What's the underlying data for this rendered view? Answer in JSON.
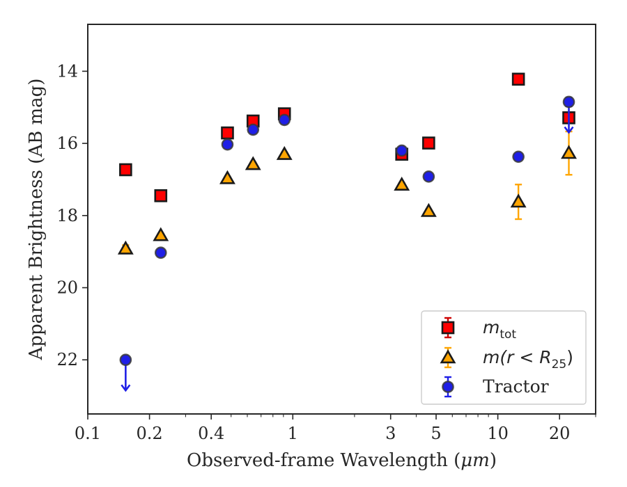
{
  "chart_data": {
    "type": "scatter",
    "xlabel_prefix": "Observed-frame Wavelength (",
    "xlabel_unit": "μm",
    "xlabel_suffix": ")",
    "ylabel": "Apparent Brightness (AB mag)",
    "xscale": "log",
    "xlim": [
      0.1,
      30
    ],
    "ylim": [
      23.5,
      12.7
    ],
    "y_inverted": true,
    "grid": false,
    "legend_position": "bottom-right",
    "x_ticks": [
      {
        "value": 0.1,
        "label": "0.1"
      },
      {
        "value": 0.2,
        "label": "0.2"
      },
      {
        "value": 0.4,
        "label": "0.4"
      },
      {
        "value": 1,
        "label": "1"
      },
      {
        "value": 3,
        "label": "3"
      },
      {
        "value": 5,
        "label": "5"
      },
      {
        "value": 10,
        "label": "10"
      },
      {
        "value": 20,
        "label": "20"
      }
    ],
    "y_ticks": [
      {
        "value": 14,
        "label": "14"
      },
      {
        "value": 16,
        "label": "16"
      },
      {
        "value": 18,
        "label": "18"
      },
      {
        "value": 20,
        "label": "20"
      },
      {
        "value": 22,
        "label": "22"
      }
    ],
    "series": [
      {
        "key": "mtot",
        "legend_main": "m",
        "legend_sub": "tot",
        "legend_rest": "",
        "marker": "square",
        "color": "#ff0000",
        "edge": "#1a1a1a",
        "err_color": "#cc0000",
        "points": [
          {
            "x": 0.153,
            "y": 16.73,
            "err": 0.05
          },
          {
            "x": 0.227,
            "y": 17.45,
            "err": 0.05
          },
          {
            "x": 0.48,
            "y": 15.71,
            "err": 0.05
          },
          {
            "x": 0.64,
            "y": 15.38,
            "err": 0.05
          },
          {
            "x": 0.91,
            "y": 15.18,
            "err": 0.07
          },
          {
            "x": 3.4,
            "y": 16.3,
            "err": 0.12
          },
          {
            "x": 4.6,
            "y": 15.99,
            "err": 0.05
          },
          {
            "x": 12.6,
            "y": 14.22,
            "err": 0.05
          },
          {
            "x": 22.2,
            "y": 15.29,
            "err": 0.05
          }
        ]
      },
      {
        "key": "mr25",
        "legend_main": "m",
        "legend_sub": "25",
        "legend_rest": "(r < R",
        "legend_close": ")",
        "marker": "triangle",
        "color": "#ffa500",
        "edge": "#1a1a1a",
        "err_color": "#ffa500",
        "points": [
          {
            "x": 0.153,
            "y": 18.92,
            "err": 0.1
          },
          {
            "x": 0.227,
            "y": 18.55,
            "err": 0.05
          },
          {
            "x": 0.48,
            "y": 16.97,
            "err": 0.05
          },
          {
            "x": 0.64,
            "y": 16.58,
            "err": 0.05
          },
          {
            "x": 0.91,
            "y": 16.3,
            "err": 0.05
          },
          {
            "x": 3.4,
            "y": 17.15,
            "err": 0.05
          },
          {
            "x": 4.6,
            "y": 17.88,
            "err": 0.05
          },
          {
            "x": 12.6,
            "y": 17.62,
            "err": 0.48
          },
          {
            "x": 22.2,
            "y": 16.27,
            "err": 0.6
          }
        ]
      },
      {
        "key": "tractor",
        "legend_main": "Tractor",
        "marker": "circle",
        "color": "#1f1fe6",
        "edge": "#3a3a3a",
        "err_color": "#1f1fe6",
        "points": [
          {
            "x": 0.153,
            "y": 22.0,
            "err": 0.05,
            "upper_limit": true
          },
          {
            "x": 0.227,
            "y": 19.03,
            "err": 0.05
          },
          {
            "x": 0.48,
            "y": 16.03,
            "err": 0.05
          },
          {
            "x": 0.64,
            "y": 15.62,
            "err": 0.05
          },
          {
            "x": 0.91,
            "y": 15.35,
            "err": 0.05
          },
          {
            "x": 3.4,
            "y": 16.2,
            "err": 0.05
          },
          {
            "x": 4.6,
            "y": 16.92,
            "err": 0.05
          },
          {
            "x": 12.6,
            "y": 16.37,
            "err": 0.05
          },
          {
            "x": 22.2,
            "y": 14.85,
            "err": 0.12,
            "upper_limit": true
          }
        ]
      }
    ]
  }
}
